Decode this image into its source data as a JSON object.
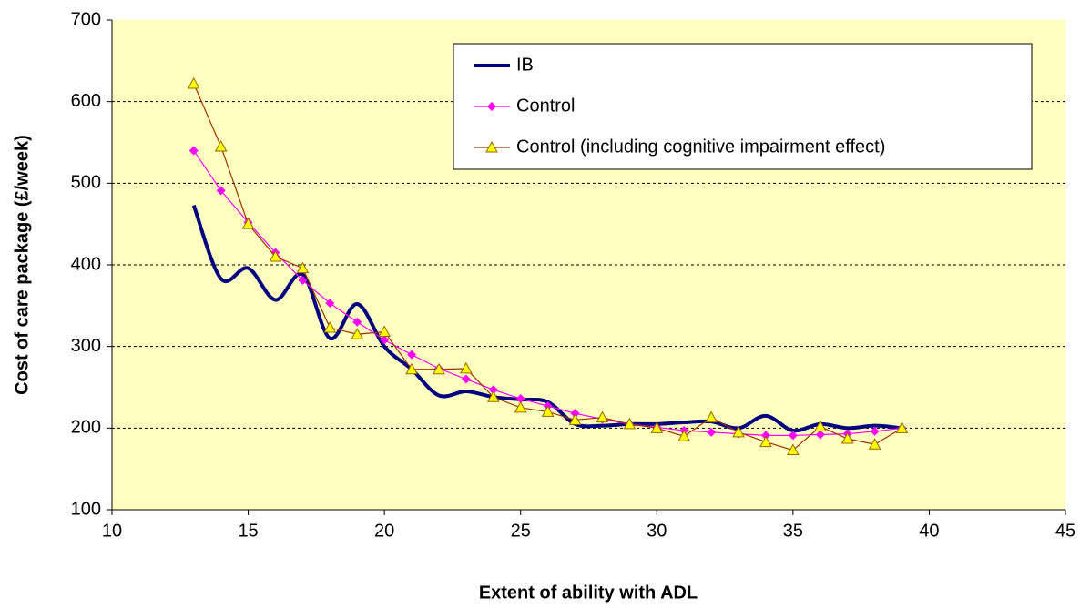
{
  "chart_data": {
    "type": "line",
    "xlabel": "Extent of ability with ADL",
    "ylabel": "Cost of care package (£/week)",
    "x": [
      13,
      14,
      15,
      16,
      17,
      18,
      19,
      20,
      21,
      22,
      23,
      24,
      25,
      26,
      27,
      28,
      29,
      30,
      31,
      32,
      33,
      34,
      35,
      36,
      37,
      38,
      39
    ],
    "series": [
      {
        "name": "IB",
        "color": "#000080",
        "marker": "none",
        "smooth": true,
        "values": [
          473,
          383,
          396,
          357,
          388,
          310,
          352,
          300,
          272,
          240,
          245,
          238,
          235,
          232,
          205,
          203,
          205,
          205,
          207,
          208,
          200,
          215,
          197,
          205,
          200,
          203,
          200
        ]
      },
      {
        "name": "Control",
        "color": "#ff00ff",
        "marker": "diamond",
        "marker_color": "#ff00ff",
        "values": [
          540,
          491,
          452,
          415,
          381,
          353,
          330,
          308,
          290,
          273,
          260,
          247,
          236,
          227,
          218,
          211,
          205,
          201,
          197,
          195,
          193,
          191,
          191,
          192,
          193,
          196,
          200
        ]
      },
      {
        "name": "Control (including cognitive impairment effect)",
        "color": "#993300",
        "marker": "triangle",
        "marker_color": "#ffff00",
        "values": [
          622,
          545,
          450,
          410,
          396,
          323,
          315,
          318,
          272,
          272,
          273,
          238,
          225,
          220,
          210,
          213,
          205,
          200,
          190,
          213,
          195,
          183,
          173,
          202,
          187,
          180,
          200
        ]
      }
    ],
    "xlim": [
      10,
      45
    ],
    "xticks": [
      10,
      15,
      20,
      25,
      30,
      35,
      40,
      45
    ],
    "ylim": [
      100,
      700
    ],
    "yticks": [
      100,
      200,
      300,
      400,
      500,
      600,
      700
    ],
    "grid": true,
    "legend": "upper right",
    "plot_background": "#ffffc0"
  }
}
